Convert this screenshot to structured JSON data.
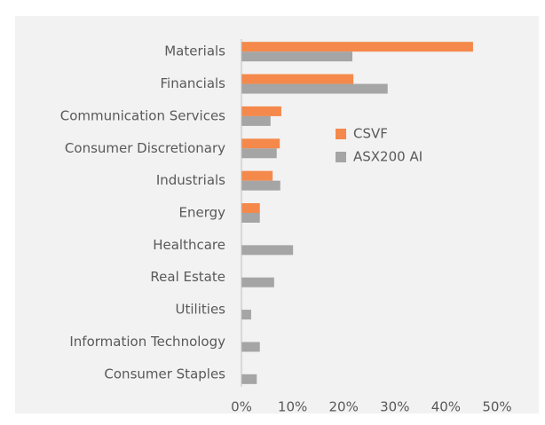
{
  "chart_data": {
    "type": "barh",
    "categories": [
      "Materials",
      "Financials",
      "Communication Services",
      "Consumer Discretionary",
      "Industrials",
      "Energy",
      "Healthcare",
      "Real Estate",
      "Utilities",
      "Information Technology",
      "Consumer Staples"
    ],
    "series": [
      {
        "name": "CSVF",
        "color": "#f4894b",
        "values": [
          45.3,
          21.9,
          7.8,
          7.5,
          6.1,
          3.6,
          0,
          0,
          0,
          0,
          0
        ]
      },
      {
        "name": "ASX200 AI",
        "color": "#a5a5a5",
        "values": [
          21.7,
          28.6,
          5.7,
          6.9,
          7.6,
          3.6,
          10.1,
          6.4,
          1.9,
          3.6,
          3.0
        ]
      }
    ],
    "xlim": [
      0,
      50
    ],
    "xticks": [
      {
        "value": 0,
        "label": "0%"
      },
      {
        "value": 10,
        "label": "10%"
      },
      {
        "value": 20,
        "label": "20%"
      },
      {
        "value": 30,
        "label": "30%"
      },
      {
        "value": 40,
        "label": "40%"
      },
      {
        "value": 50,
        "label": "50%"
      }
    ],
    "grid": false,
    "legend": "center"
  }
}
